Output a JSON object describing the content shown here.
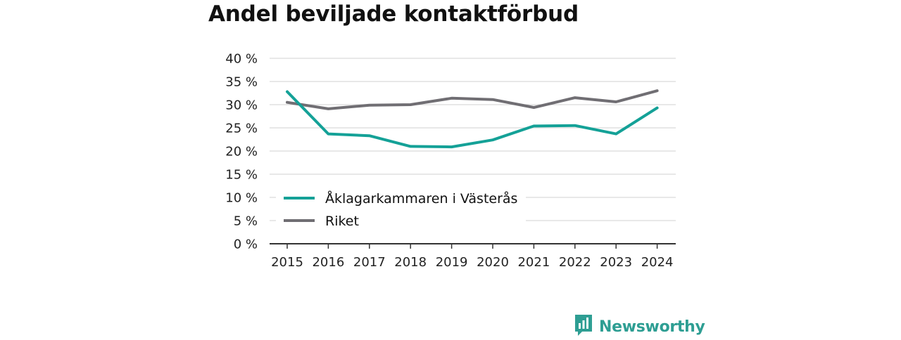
{
  "chart_data": {
    "type": "line",
    "title": "Andel beviljade kontaktförbud",
    "categories": [
      "2015",
      "2016",
      "2017",
      "2018",
      "2019",
      "2020",
      "2021",
      "2022",
      "2023",
      "2024"
    ],
    "y_ticks": [
      "0 %",
      "5 %",
      "10 %",
      "15 %",
      "20 %",
      "25 %",
      "30 %",
      "35 %",
      "40 %"
    ],
    "ylim": [
      0,
      40
    ],
    "grid": true,
    "legend_position": "bottom-left",
    "series": [
      {
        "name": "Åklagarkammaren i Västerås",
        "color": "#14a197",
        "values": [
          32.8,
          23.7,
          23.3,
          21.0,
          20.9,
          22.4,
          25.4,
          25.5,
          23.7,
          29.3
        ]
      },
      {
        "name": "Riket",
        "color": "#706e73",
        "values": [
          30.5,
          29.1,
          29.9,
          30.0,
          31.4,
          31.1,
          29.4,
          31.5,
          30.6,
          33.0
        ]
      }
    ]
  },
  "branding": {
    "name": "Newsworthy",
    "logo_icon": "bar-chart-bubble-icon",
    "color": "#2e9e93"
  }
}
